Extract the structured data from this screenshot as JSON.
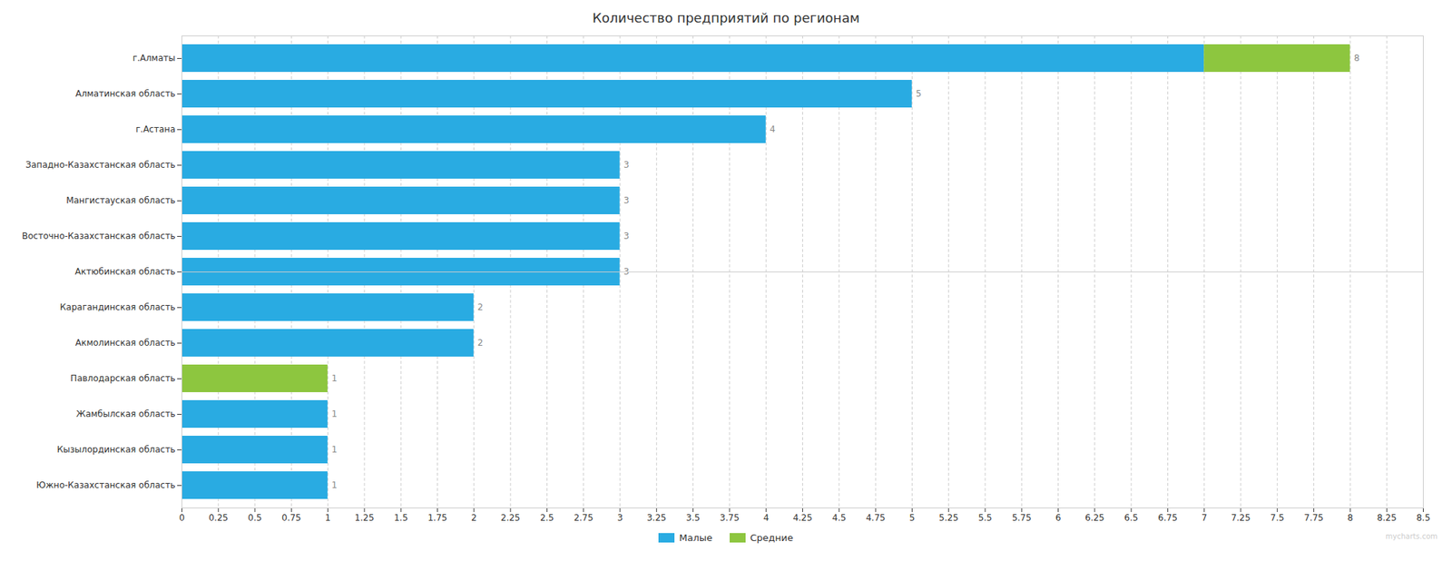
{
  "chart_data": {
    "type": "bar",
    "orientation": "horizontal",
    "stacked": true,
    "title": "Количество предприятий по регионам",
    "categories": [
      "г.Алматы",
      "Алматинская область",
      "г.Астана",
      "Западно-Казахстанская область",
      "Мангистауская область",
      "Восточно-Казахстанская область",
      "Актюбинская область",
      "Карагандинская область",
      "Акмолинская область",
      "Павлодарская область",
      "Жамбылская область",
      "Кызылординская область",
      "Южно-Казахстанская область"
    ],
    "series": [
      {
        "name": "Малые",
        "color": "#29ABE2",
        "values": [
          7,
          5,
          4,
          3,
          3,
          3,
          3,
          2,
          2,
          0,
          1,
          1,
          1
        ]
      },
      {
        "name": "Средние",
        "color": "#8DC63F",
        "values": [
          1,
          0,
          0,
          0,
          0,
          0,
          0,
          0,
          0,
          1,
          0,
          0,
          0
        ]
      }
    ],
    "totals": [
      8,
      5,
      4,
      3,
      3,
      3,
      3,
      2,
      2,
      1,
      1,
      1,
      1
    ],
    "xlim": [
      0,
      8.5
    ],
    "xticks": [
      0,
      0.25,
      0.5,
      0.75,
      1.0,
      1.25,
      1.5,
      1.75,
      2.0,
      2.25,
      2.5,
      2.75,
      3.0,
      3.25,
      3.5,
      3.75,
      4.0,
      4.25,
      4.5,
      4.75,
      5.0,
      5.25,
      5.5,
      5.75,
      6.0,
      6.25,
      6.5,
      6.75,
      7.0,
      7.25,
      7.5,
      7.75,
      8.0,
      8.25,
      8.5
    ],
    "grid": true,
    "legend": "bottom",
    "annotations": [
      "mycharts.com"
    ]
  }
}
